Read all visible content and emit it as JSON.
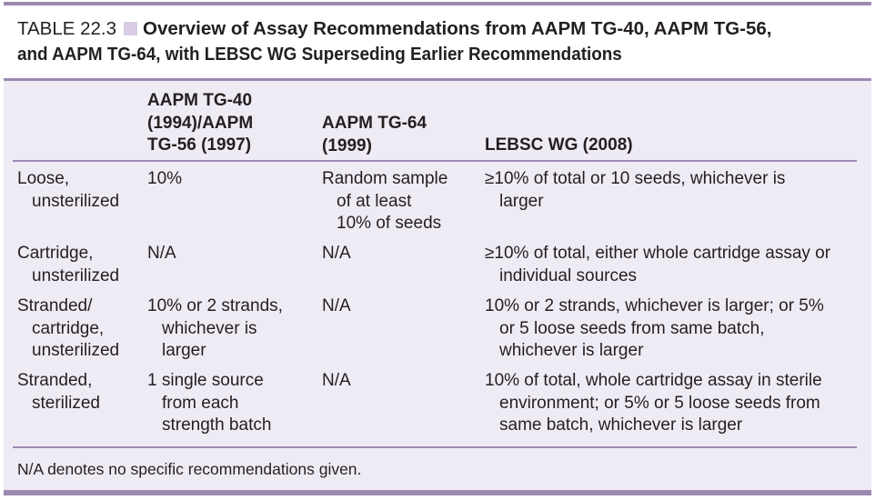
{
  "caption": {
    "label": "TABLE 22.3",
    "title_line1": "Overview of Assay Recommendations from AAPM TG-40, AAPM TG-56,",
    "title_line2": "and AAPM TG-64, with LEBSC WG Superseding Earlier Recommendations"
  },
  "table": {
    "headers": {
      "col1": "",
      "col2": [
        "AAPM TG-40",
        "(1994)/AAPM",
        "TG-56 (1997)"
      ],
      "col3": [
        "AAPM TG-64",
        "(1999)"
      ],
      "col4": "LEBSC WG (2008)"
    },
    "rows": [
      {
        "category": [
          "Loose,",
          "unsterilized"
        ],
        "tg40_56": [
          "10%"
        ],
        "tg64": [
          "Random sample",
          "of at least",
          "10% of seeds"
        ],
        "lebsc": [
          "≥10% of total or 10 seeds, whichever is",
          "larger"
        ]
      },
      {
        "category": [
          "Cartridge,",
          "unsterilized"
        ],
        "tg40_56": [
          "N/A"
        ],
        "tg64": [
          "N/A"
        ],
        "lebsc": [
          "≥10% of total, either whole cartridge assay or",
          "individual sources"
        ]
      },
      {
        "category": [
          "Stranded/",
          "cartridge,",
          "unsterilized"
        ],
        "tg40_56": [
          "10% or 2 strands,",
          "whichever is",
          "larger"
        ],
        "tg64": [
          "N/A"
        ],
        "lebsc": [
          "10% or 2 strands, whichever is larger; or 5%",
          "or 5 loose seeds from same batch,",
          "whichever is larger"
        ]
      },
      {
        "category": [
          "Stranded,",
          "sterilized"
        ],
        "tg40_56": [
          "1 single source",
          "from each",
          "strength batch"
        ],
        "tg64": [
          "N/A"
        ],
        "lebsc": [
          "10% of total, whole cartridge assay in sterile",
          "environment; or 5% or 5 loose seeds from",
          "same batch, whichever is larger"
        ]
      }
    ],
    "footnote": "N/A denotes no specific recommendations given."
  },
  "colors": {
    "rule": "#9c8ab2",
    "table_background": "#efebf4",
    "caption_square": "#d8cde3",
    "text": "#231f20"
  }
}
